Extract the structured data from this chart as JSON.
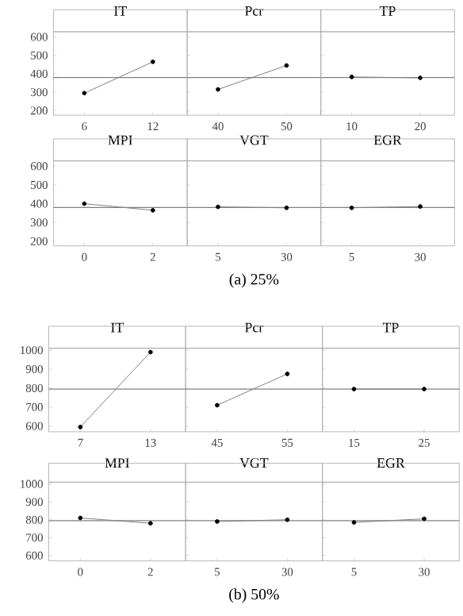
{
  "chart_data": [
    {
      "type": "line",
      "title": "IT",
      "categories": [
        "6",
        "12"
      ],
      "series": [
        {
          "color": "#808080",
          "values": [
            295,
            465
          ]
        }
      ],
      "ylim": [
        175,
        628
      ],
      "yticks": [
        200,
        300,
        400,
        500,
        600
      ],
      "marker": "circle",
      "ref_lines": [
        {
          "axis": "y",
          "value": 380,
          "color": "#808080"
        }
      ]
    },
    {
      "type": "line",
      "title": "Pcr",
      "categories": [
        "40",
        "50"
      ],
      "series": [
        {
          "color": "#808080",
          "values": [
            315,
            445
          ]
        }
      ],
      "ylim": [
        175,
        628
      ],
      "yticks": [
        200,
        300,
        400,
        500,
        600
      ],
      "tick_labels": "x",
      "marker": "circle",
      "ref_lines": [
        {
          "axis": "y",
          "value": 380,
          "color": "#808080"
        }
      ]
    },
    {
      "type": "line",
      "title": "TP",
      "categories": [
        "10",
        "20"
      ],
      "series": [
        {
          "color": "#808080",
          "values": [
            383,
            378
          ]
        }
      ],
      "ylim": [
        175,
        628
      ],
      "yticks": [
        200,
        300,
        400,
        500,
        600
      ],
      "tick_labels": "x",
      "marker": "circle",
      "ref_lines": [
        {
          "axis": "y",
          "value": 380,
          "color": "#808080"
        }
      ]
    },
    {
      "type": "line",
      "title": "MPI",
      "categories": [
        "0",
        "2"
      ],
      "series": [
        {
          "color": "#808080",
          "values": [
            400,
            365
          ]
        }
      ],
      "ylim": [
        175,
        628
      ],
      "yticks": [
        200,
        300,
        400,
        500,
        600
      ],
      "marker": "circle",
      "ref_lines": [
        {
          "axis": "y",
          "value": 380,
          "color": "#808080"
        }
      ]
    },
    {
      "type": "line",
      "title": "VGT",
      "categories": [
        "5",
        "30"
      ],
      "series": [
        {
          "color": "#808080",
          "values": [
            383,
            378
          ]
        }
      ],
      "ylim": [
        175,
        628
      ],
      "yticks": [
        200,
        300,
        400,
        500,
        600
      ],
      "tick_labels": "x",
      "marker": "circle",
      "ref_lines": [
        {
          "axis": "y",
          "value": 380,
          "color": "#808080"
        }
      ],
      "annotations": [
        "(a)  25%"
      ]
    },
    {
      "type": "line",
      "title": "EGR",
      "categories": [
        "5",
        "30"
      ],
      "series": [
        {
          "color": "#808080",
          "values": [
            378,
            385
          ]
        }
      ],
      "ylim": [
        175,
        628
      ],
      "yticks": [
        200,
        300,
        400,
        500,
        600
      ],
      "tick_labels": "x",
      "marker": "circle",
      "ref_lines": [
        {
          "axis": "y",
          "value": 380,
          "color": "#808080"
        }
      ]
    },
    {
      "type": "line",
      "title": "IT",
      "categories": [
        "7",
        "13"
      ],
      "series": [
        {
          "color": "#808080",
          "values": [
            595,
            990
          ]
        }
      ],
      "ylim": [
        570,
        1010
      ],
      "yticks": [
        600,
        700,
        800,
        900,
        1000
      ],
      "marker": "circle",
      "ref_lines": [
        {
          "axis": "y",
          "value": 795,
          "color": "#808080"
        }
      ]
    },
    {
      "type": "line",
      "title": "Pcr",
      "categories": [
        "45",
        "55"
      ],
      "series": [
        {
          "color": "#808080",
          "values": [
            710,
            875
          ]
        }
      ],
      "ylim": [
        570,
        1010
      ],
      "yticks": [
        600,
        700,
        800,
        900,
        1000
      ],
      "tick_labels": "x",
      "marker": "circle",
      "ref_lines": [
        {
          "axis": "y",
          "value": 795,
          "color": "#808080"
        }
      ]
    },
    {
      "type": "line",
      "title": "TP",
      "categories": [
        "15",
        "25"
      ],
      "series": [
        {
          "color": "#808080",
          "values": [
            795,
            795
          ]
        }
      ],
      "ylim": [
        570,
        1010
      ],
      "yticks": [
        600,
        700,
        800,
        900,
        1000
      ],
      "tick_labels": "x",
      "marker": "circle",
      "ref_lines": [
        {
          "axis": "y",
          "value": 795,
          "color": "#808080"
        }
      ]
    },
    {
      "type": "line",
      "title": "MPI",
      "categories": [
        "0",
        "2"
      ],
      "series": [
        {
          "color": "#808080",
          "values": [
            810,
            780
          ]
        }
      ],
      "ylim": [
        570,
        1010
      ],
      "yticks": [
        600,
        700,
        800,
        900,
        1000
      ],
      "marker": "circle",
      "ref_lines": [
        {
          "axis": "y",
          "value": 795,
          "color": "#808080"
        }
      ]
    },
    {
      "type": "line",
      "title": "VGT",
      "categories": [
        "5",
        "30"
      ],
      "series": [
        {
          "color": "#808080",
          "values": [
            790,
            800
          ]
        }
      ],
      "ylim": [
        570,
        1010
      ],
      "yticks": [
        600,
        700,
        800,
        900,
        1000
      ],
      "tick_labels": "x",
      "marker": "circle",
      "ref_lines": [
        {
          "axis": "y",
          "value": 795,
          "color": "#808080"
        }
      ],
      "annotations": [
        "(b)  50%"
      ]
    },
    {
      "type": "line",
      "title": "EGR",
      "categories": [
        "5",
        "30"
      ],
      "series": [
        {
          "color": "#808080",
          "values": [
            785,
            805
          ]
        }
      ],
      "ylim": [
        570,
        1010
      ],
      "yticks": [
        600,
        700,
        800,
        900,
        1000
      ],
      "tick_labels": "x",
      "marker": "circle",
      "ref_lines": [
        {
          "axis": "y",
          "value": 795,
          "color": "#808080"
        }
      ]
    }
  ]
}
